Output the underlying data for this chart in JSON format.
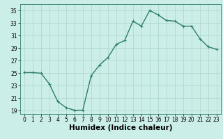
{
  "x": [
    0,
    1,
    2,
    3,
    4,
    5,
    6,
    7,
    8,
    9,
    10,
    11,
    12,
    13,
    14,
    15,
    16,
    17,
    18,
    19,
    20,
    21,
    22,
    23
  ],
  "y": [
    25.1,
    25.1,
    25.0,
    23.3,
    20.5,
    19.5,
    19.1,
    19.1,
    24.6,
    26.3,
    27.5,
    29.6,
    30.2,
    33.3,
    32.5,
    35.0,
    34.3,
    33.4,
    33.3,
    32.5,
    32.5,
    30.5,
    29.2,
    28.8
  ],
  "line_color": "#2e7d6e",
  "marker": "+",
  "bg_color": "#cceee8",
  "grid_color": "#b0d8d0",
  "xlabel": "Humidex (Indice chaleur)",
  "xlim": [
    -0.5,
    23.5
  ],
  "ylim": [
    18.5,
    36
  ],
  "yticks": [
    19,
    21,
    23,
    25,
    27,
    29,
    31,
    33,
    35
  ],
  "xticks": [
    0,
    1,
    2,
    3,
    4,
    5,
    6,
    7,
    8,
    9,
    10,
    11,
    12,
    13,
    14,
    15,
    16,
    17,
    18,
    19,
    20,
    21,
    22,
    23
  ],
  "tick_fontsize": 5.5,
  "xlabel_fontsize": 7.5,
  "linewidth": 1.0,
  "markersize": 3.5,
  "markeredgewidth": 0.8
}
